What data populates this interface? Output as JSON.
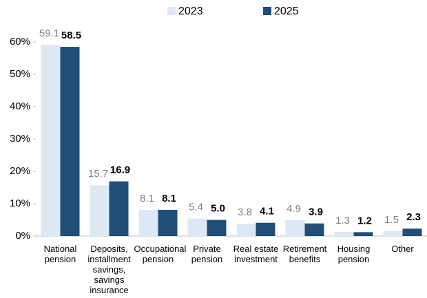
{
  "chart_data": {
    "type": "bar",
    "categories": [
      "National pension",
      "Deposits, installment savings, savings insurance",
      "Occupational pension",
      "Private pension",
      "Real estate investment",
      "Retirement benefits",
      "Housing pension",
      "Other"
    ],
    "series": [
      {
        "name": "2023",
        "color": "#dce9f5",
        "values": [
          59.1,
          15.7,
          8.1,
          5.4,
          3.8,
          4.9,
          1.3,
          1.5
        ],
        "value_labels": [
          "59.1",
          "15.7",
          "8.1",
          "5.4",
          "3.8",
          "4.9",
          "1.3",
          "1.5"
        ]
      },
      {
        "name": "2025",
        "color": "#1f4e79",
        "values": [
          58.5,
          16.9,
          8.1,
          5.0,
          4.1,
          3.9,
          1.2,
          2.3
        ],
        "value_labels": [
          "58.5",
          "16.9",
          "8.1",
          "5.0",
          "4.1",
          "3.9",
          "1.2",
          "2.3"
        ]
      }
    ],
    "ylim": [
      0,
      60
    ],
    "yticks": [
      {
        "value": 0,
        "label": "0%"
      },
      {
        "value": 10,
        "label": "10%"
      },
      {
        "value": 20,
        "label": "20%"
      },
      {
        "value": 30,
        "label": "30%"
      },
      {
        "value": 40,
        "label": "40%"
      },
      {
        "value": 50,
        "label": "50%"
      },
      {
        "value": 60,
        "label": "60%"
      }
    ],
    "legend": "top"
  }
}
